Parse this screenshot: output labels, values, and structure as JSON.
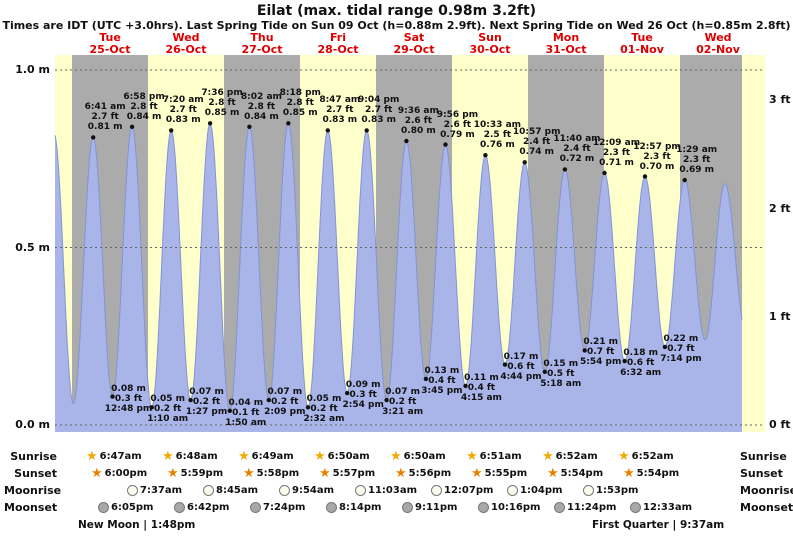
{
  "title": "Eilat (max. tidal range 0.98m 3.2ft)",
  "subtitle": "Times are IDT (UTC +3.0hrs). Last Spring Tide on Sun 09 Oct (h=0.88m 2.9ft). Next Spring Tide on Wed 26 Oct (h=0.85m 2.8ft)",
  "days": [
    {
      "dow": "Tue",
      "date": "25-Oct"
    },
    {
      "dow": "Wed",
      "date": "26-Oct"
    },
    {
      "dow": "Thu",
      "date": "27-Oct"
    },
    {
      "dow": "Fri",
      "date": "28-Oct"
    },
    {
      "dow": "Sat",
      "date": "29-Oct"
    },
    {
      "dow": "Sun",
      "date": "30-Oct"
    },
    {
      "dow": "Mon",
      "date": "31-Oct"
    },
    {
      "dow": "Tue",
      "date": "01-Nov"
    },
    {
      "dow": "Wed",
      "date": "02-Nov"
    }
  ],
  "y_axis": {
    "left": [
      {
        "label": "1.0 m",
        "value": 1.0
      },
      {
        "label": "0.5 m",
        "value": 0.5
      },
      {
        "label": "0.0 m",
        "value": 0.0
      }
    ],
    "right": [
      {
        "label": "3 ft",
        "value": 0.9144
      },
      {
        "label": "2 ft",
        "value": 0.6096
      },
      {
        "label": "1 ft",
        "value": 0.3048
      },
      {
        "label": "0 ft",
        "value": 0.0
      }
    ]
  },
  "chart_data": {
    "type": "area",
    "title": "Eilat (max. tidal range 0.98m 3.2ft)",
    "unit": "m",
    "ylim": [
      0,
      1.05
    ],
    "x_range_days": [
      -0.224,
      9.118
    ],
    "interpolation": "cosine",
    "curve": {
      "t_range": [
        -0.224,
        8.816
      ]
    },
    "extremes": [
      {
        "t": -0.236,
        "h": 0.82,
        "type": "high"
      },
      {
        "t": 0.018,
        "h": 0.06,
        "type": "low"
      },
      {
        "t": 0.2785,
        "h": 0.81,
        "type": "high",
        "time": "6:41 am",
        "ft": "2.7 ft",
        "m": "0.81 m"
      },
      {
        "t": 0.5333,
        "h": 0.08,
        "type": "low",
        "m": "0.08 m",
        "ft": "0.3 ft",
        "time": "12:48 pm"
      },
      {
        "t": 0.7903,
        "h": 0.84,
        "type": "high",
        "time": "6:58 pm",
        "ft": "2.8 ft",
        "m": "0.84 m"
      },
      {
        "t": 1.0486,
        "h": 0.05,
        "type": "low",
        "m": "0.05 m",
        "ft": "0.2 ft",
        "time": "1:10 am"
      },
      {
        "t": 1.3056,
        "h": 0.83,
        "type": "high",
        "time": "7:20 am",
        "ft": "2.7 ft",
        "m": "0.83 m"
      },
      {
        "t": 1.5604,
        "h": 0.07,
        "type": "low",
        "m": "0.07 m",
        "ft": "0.2 ft",
        "time": "1:27 pm"
      },
      {
        "t": 1.8167,
        "h": 0.85,
        "type": "high",
        "time": "7:36 pm",
        "ft": "2.8 ft",
        "m": "0.85 m"
      },
      {
        "t": 2.0764,
        "h": 0.04,
        "type": "low",
        "m": "0.04 m",
        "ft": "0.1 ft",
        "time": "1:50 am"
      },
      {
        "t": 2.3347,
        "h": 0.84,
        "type": "high",
        "time": "8:02 am",
        "ft": "2.8 ft",
        "m": "0.84 m"
      },
      {
        "t": 2.5896,
        "h": 0.07,
        "type": "low",
        "m": "0.07 m",
        "ft": "0.2 ft",
        "time": "2:09 pm"
      },
      {
        "t": 2.8458,
        "h": 0.85,
        "type": "high",
        "time": "8:18 pm",
        "ft": "2.8 ft",
        "m": "0.85 m"
      },
      {
        "t": 3.1056,
        "h": 0.05,
        "type": "low",
        "m": "0.05 m",
        "ft": "0.2 ft",
        "time": "2:32 am"
      },
      {
        "t": 3.366,
        "h": 0.83,
        "type": "high",
        "time": "8:47 am",
        "ft": "2.7 ft",
        "m": "0.83 m"
      },
      {
        "t": 3.6208,
        "h": 0.09,
        "type": "low",
        "m": "0.09 m",
        "ft": "0.3 ft",
        "time": "2:54 pm"
      },
      {
        "t": 3.8778,
        "h": 0.83,
        "type": "high",
        "time": "9:04 pm",
        "ft": "2.7 ft",
        "m": "0.83 m"
      },
      {
        "t": 4.1396,
        "h": 0.07,
        "type": "low",
        "m": "0.07 m",
        "ft": "0.2 ft",
        "time": "3:21 am"
      },
      {
        "t": 4.4,
        "h": 0.8,
        "type": "high",
        "time": "9:36 am",
        "ft": "2.6 ft",
        "m": "0.80 m"
      },
      {
        "t": 4.6563,
        "h": 0.13,
        "type": "low",
        "m": "0.13 m",
        "ft": "0.4 ft",
        "time": "3:45 pm"
      },
      {
        "t": 4.9139,
        "h": 0.79,
        "type": "high",
        "time": "9:56 pm",
        "ft": "2.6 ft",
        "m": "0.79 m"
      },
      {
        "t": 5.1771,
        "h": 0.11,
        "type": "low",
        "m": "0.11 m",
        "ft": "0.4 ft",
        "time": "4:15 am"
      },
      {
        "t": 5.4396,
        "h": 0.76,
        "type": "high",
        "time": "10:33 am",
        "ft": "2.5 ft",
        "m": "0.76 m"
      },
      {
        "t": 5.6972,
        "h": 0.17,
        "type": "low",
        "m": "0.17 m",
        "ft": "0.6 ft",
        "time": "4:44 pm"
      },
      {
        "t": 5.9563,
        "h": 0.74,
        "type": "high",
        "time": "10:57 pm",
        "ft": "2.4 ft",
        "m": "0.74 m"
      },
      {
        "t": 6.2208,
        "h": 0.15,
        "type": "low",
        "m": "0.15 m",
        "ft": "0.5 ft",
        "time": "5:18 am"
      },
      {
        "t": 6.4861,
        "h": 0.72,
        "type": "high",
        "time": "11:40 am",
        "ft": "2.4 ft",
        "m": "0.72 m"
      },
      {
        "t": 6.7458,
        "h": 0.21,
        "type": "low",
        "m": "0.21 m",
        "ft": "0.7 ft",
        "time": "5:54 pm"
      },
      {
        "t": 7.0063,
        "h": 0.71,
        "type": "high",
        "time": "12:09 am",
        "ft": "2.3 ft",
        "m": "0.71 m"
      },
      {
        "t": 7.2722,
        "h": 0.18,
        "type": "low",
        "m": "0.18 m",
        "ft": "0.6 ft",
        "time": "6:32 am"
      },
      {
        "t": 7.5396,
        "h": 0.7,
        "type": "high",
        "time": "12:57 pm",
        "ft": "2.3 ft",
        "m": "0.70 m"
      },
      {
        "t": 7.8014,
        "h": 0.22,
        "type": "low",
        "m": "0.22 m",
        "ft": "0.7 ft",
        "time": "7:14 pm"
      },
      {
        "t": 8.0618,
        "h": 0.69,
        "type": "high",
        "time": "1:29 am",
        "ft": "2.3 ft",
        "m": "0.69 m"
      },
      {
        "t": 8.33,
        "h": 0.24,
        "type": "low"
      },
      {
        "t": 8.59,
        "h": 0.68,
        "type": "high"
      },
      {
        "t": 8.87,
        "h": 0.26,
        "type": "low"
      }
    ]
  },
  "astro": {
    "rows": [
      {
        "id": "sunrise",
        "label": "Sunrise",
        "icon": "sun",
        "times": [
          "6:47am",
          "6:48am",
          "6:49am",
          "6:50am",
          "6:50am",
          "6:51am",
          "6:52am",
          "6:52am"
        ]
      },
      {
        "id": "sunset",
        "label": "Sunset",
        "icon": "sun",
        "times": [
          "6:00pm",
          "5:59pm",
          "5:58pm",
          "5:57pm",
          "5:56pm",
          "5:55pm",
          "5:54pm",
          "5:54pm"
        ]
      },
      {
        "id": "moonrise",
        "label": "Moonrise",
        "icon": "moon-light",
        "times": [
          "7:37am",
          "8:45am",
          "9:54am",
          "11:03am",
          "12:07pm",
          "1:04pm",
          "1:53pm"
        ]
      },
      {
        "id": "moonset",
        "label": "Moonset",
        "icon": "moon-dark",
        "times": [
          "6:05pm",
          "6:42pm",
          "7:24pm",
          "8:14pm",
          "9:11pm",
          "10:16pm",
          "11:24pm",
          "12:33am"
        ]
      }
    ]
  },
  "phases": [
    {
      "name": "New Moon",
      "time": "1:48pm"
    },
    {
      "name": "First Quarter",
      "time": "9:37am"
    }
  ],
  "colors": {
    "band_gray": "#ababab",
    "band_yellow": "#ffffcc",
    "tide_fill": "#a9b4e8",
    "tide_stroke": "#8294d8",
    "day_label_red": "#dd0000",
    "grid_line": "#666666",
    "sunrise_icon": "#f2a900",
    "sunset_icon": "#ee8000",
    "moonrise_fill": "#fdfdee",
    "moonset_fill": "#a8a8a8",
    "moon_border": "#777777"
  }
}
